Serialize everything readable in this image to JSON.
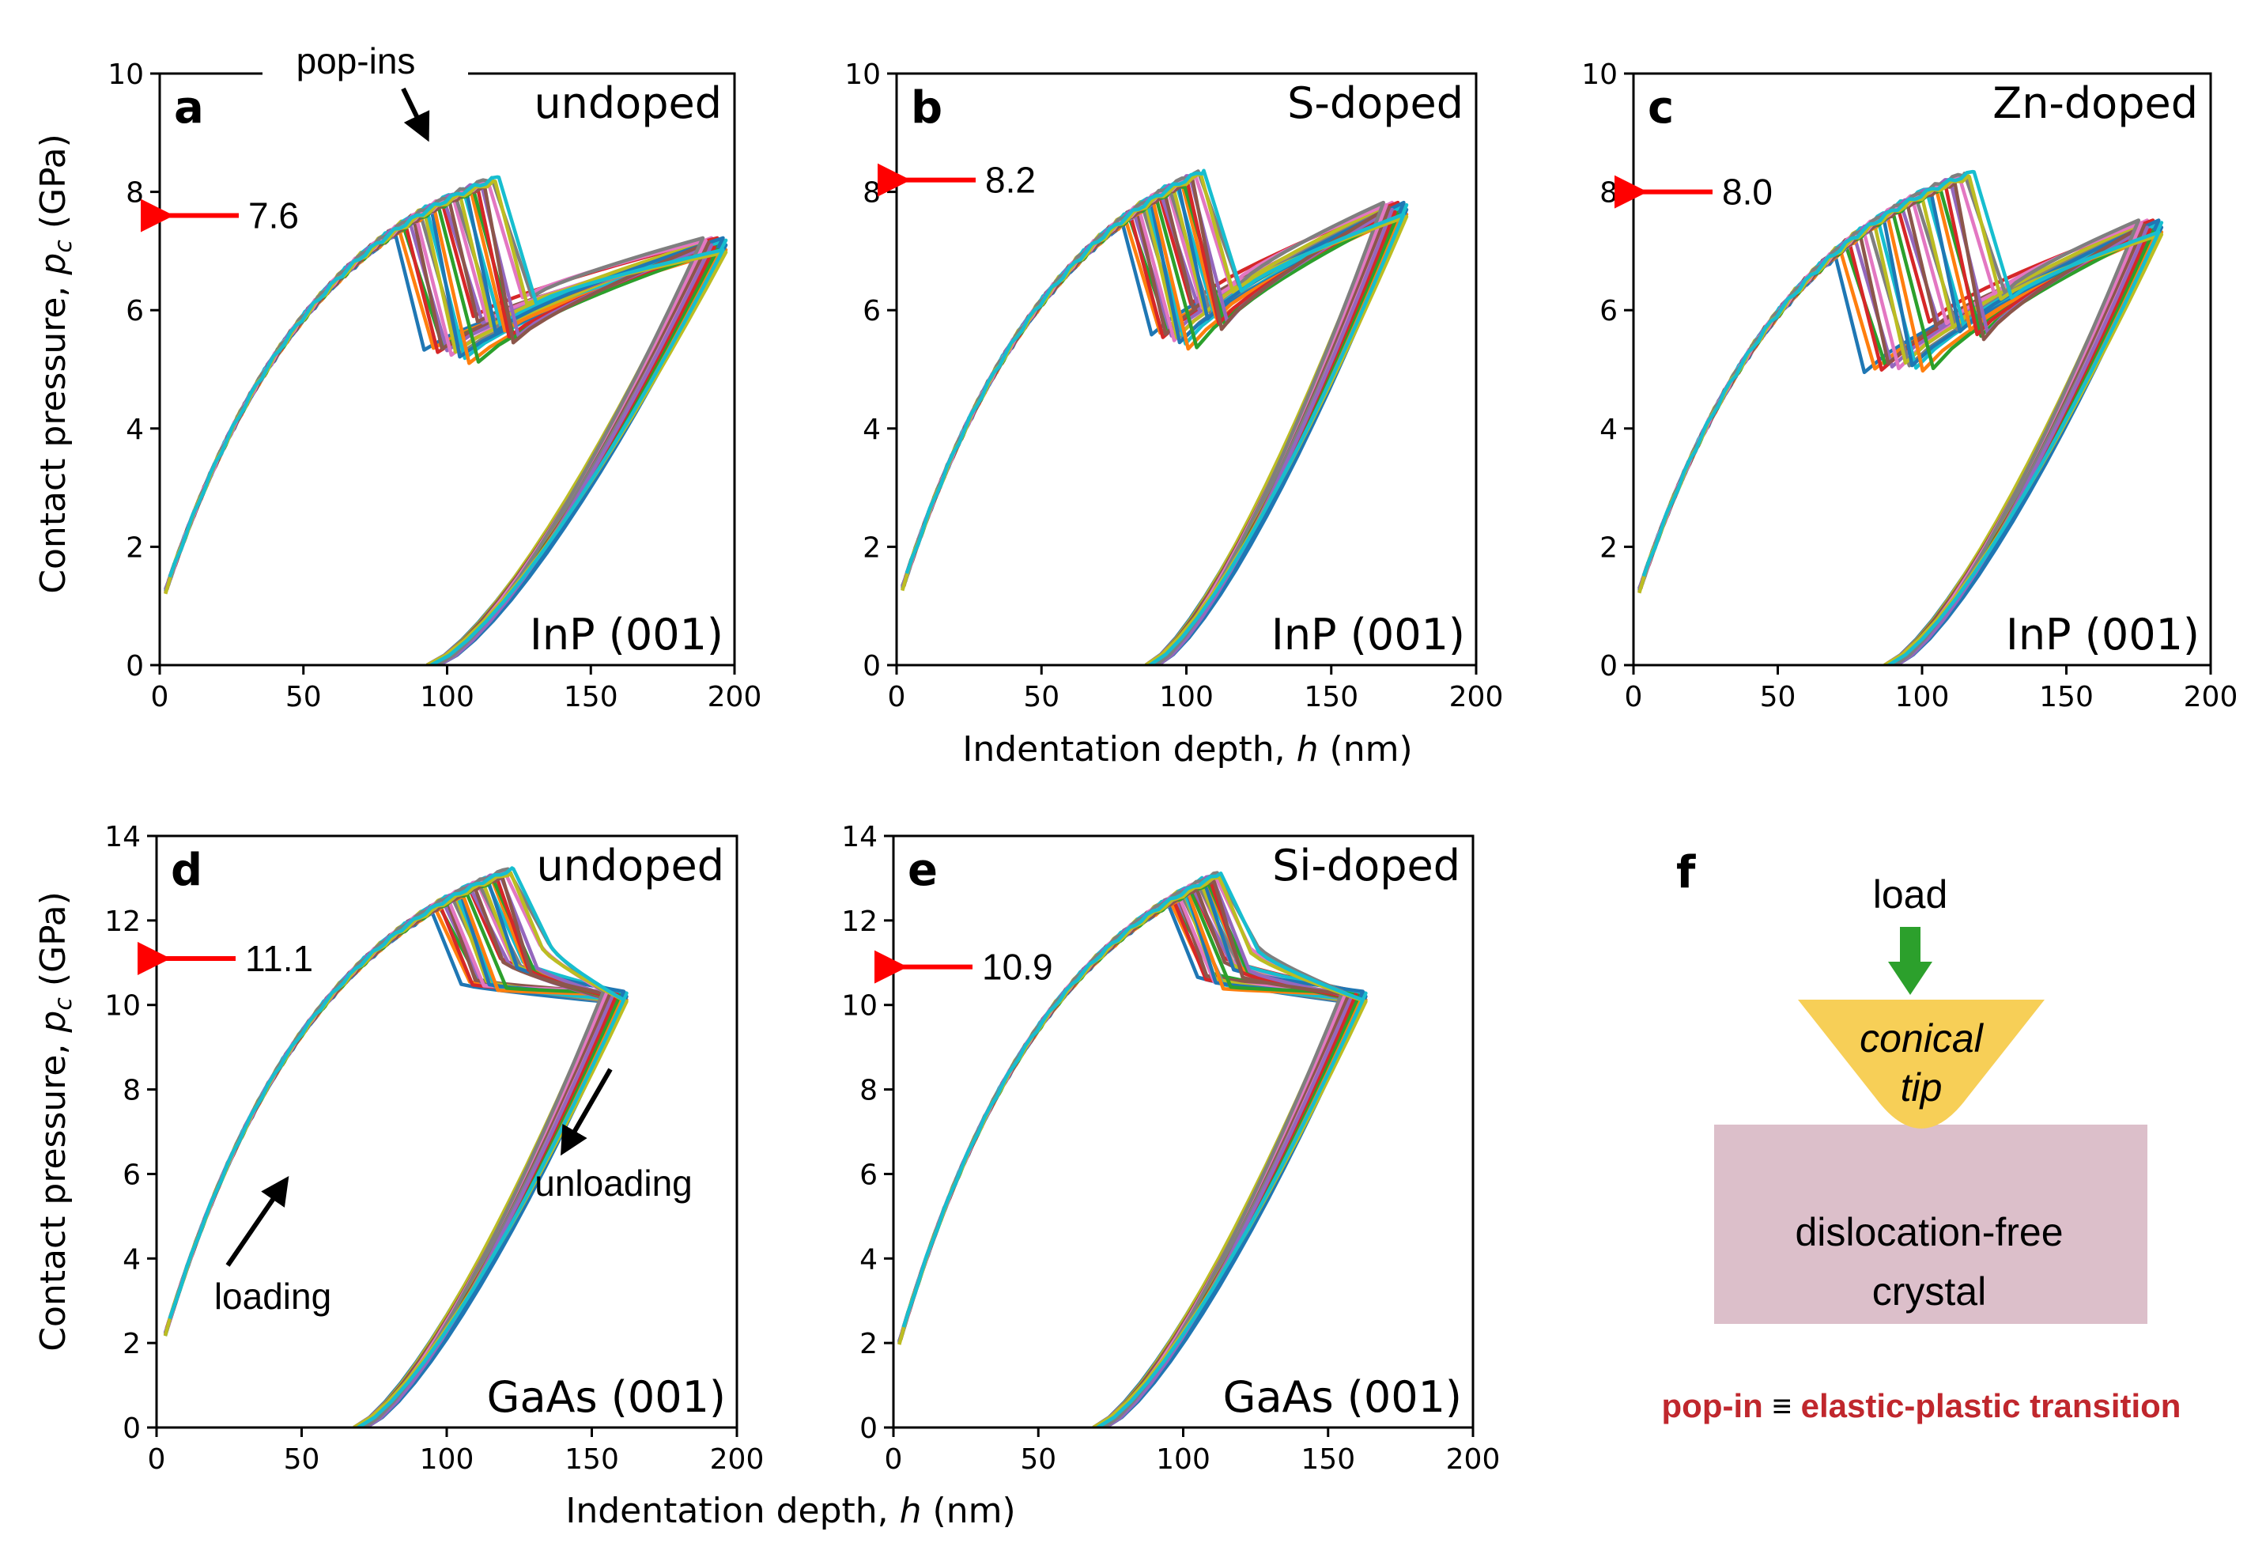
{
  "colors": {
    "marker_arrow": "#ff0000",
    "load_arrow": "#2ca02c",
    "tip_fill": "#f7cf57",
    "crystal_fill": "#dcbfca",
    "crystal_text": "#2b4a6a",
    "transition_text": "#c0272d",
    "series_palette": [
      "#1f77b4",
      "#ff7f0e",
      "#2ca02c",
      "#d62728",
      "#9467bd",
      "#8c564b",
      "#e377c2",
      "#7f7f7f",
      "#bcbd22",
      "#17becf"
    ]
  },
  "ylabel_prefix": "Contact pressure, ",
  "ylabel_symbol": "p",
  "ylabel_sub": "c",
  "ylabel_unit": " (GPa)",
  "xlabel_prefix": "Indentation depth, ",
  "xlabel_symbol": "h",
  "xlabel_unit": " (nm)",
  "chart_data": [
    {
      "panel": "a",
      "type": "line",
      "doping": "undoped",
      "material": "InP (001)",
      "xlim": [
        0,
        200
      ],
      "ylim": [
        0,
        10
      ],
      "xticks": [
        "0",
        "50",
        "100",
        "150",
        "200"
      ],
      "yticks": [
        "0",
        "2",
        "4",
        "6",
        "8",
        "10"
      ],
      "marker_value": 7.6,
      "marker_label": "7.6",
      "annotations": [
        "pop-ins"
      ],
      "n_curves": 30,
      "amplitude": 9.2,
      "start_x": 2,
      "popin_x": [
        82,
        118
      ],
      "popin_drop": 2.3,
      "max_depth": 193,
      "max_pressure": 7.1,
      "final_depth": 95
    },
    {
      "panel": "b",
      "type": "line",
      "doping": "S-doped",
      "material": "InP (001)",
      "xlim": [
        0,
        200
      ],
      "ylim": [
        0,
        10
      ],
      "xticks": [
        "0",
        "50",
        "100",
        "150",
        "200"
      ],
      "yticks": [
        "0",
        "2",
        "4",
        "6",
        "8",
        "10"
      ],
      "marker_value": 8.2,
      "marker_label": "8.2",
      "annotations": [],
      "n_curves": 30,
      "amplitude": 9.6,
      "start_x": 2,
      "popin_x": [
        78,
        106
      ],
      "popin_drop": 2.2,
      "max_depth": 172,
      "max_pressure": 7.7,
      "final_depth": 88
    },
    {
      "panel": "c",
      "type": "line",
      "doping": "Zn-doped",
      "material": "InP (001)",
      "xlim": [
        0,
        200
      ],
      "ylim": [
        0,
        10
      ],
      "xticks": [
        "0",
        "50",
        "100",
        "150",
        "200"
      ],
      "yticks": [
        "0",
        "2",
        "4",
        "6",
        "8",
        "10"
      ],
      "marker_value": 8.0,
      "marker_label": "8.0",
      "annotations": [],
      "n_curves": 30,
      "amplitude": 9.3,
      "start_x": 2,
      "popin_x": [
        70,
        118
      ],
      "popin_drop": 2.3,
      "max_depth": 179,
      "max_pressure": 7.4,
      "final_depth": 89
    },
    {
      "panel": "d",
      "type": "line",
      "doping": "undoped",
      "material": "GaAs (001)",
      "xlim": [
        0,
        200
      ],
      "ylim": [
        0,
        14
      ],
      "xticks": [
        "0",
        "50",
        "100",
        "150",
        "200"
      ],
      "yticks": [
        "0",
        "2",
        "4",
        "6",
        "8",
        "10",
        "12",
        "14"
      ],
      "marker_value": 11.1,
      "marker_label": "11.1",
      "annotations": [
        "loading",
        "unloading"
      ],
      "n_curves": 30,
      "amplitude": 14.6,
      "start_x": 3,
      "popin_x": [
        95,
        123
      ],
      "popin_drop": 2.0,
      "max_depth": 158,
      "max_pressure": 10.2,
      "final_depth": 70
    },
    {
      "panel": "e",
      "type": "line",
      "doping": "Si-doped",
      "material": "GaAs (001)",
      "xlim": [
        0,
        200
      ],
      "ylim": [
        0,
        14
      ],
      "xticks": [
        "0",
        "50",
        "100",
        "150",
        "200"
      ],
      "yticks": [
        "0",
        "2",
        "4",
        "6",
        "8",
        "10",
        "12",
        "14"
      ],
      "marker_value": 10.9,
      "marker_label": "10.9",
      "annotations": [],
      "n_curves": 30,
      "amplitude": 14.8,
      "start_x": 2,
      "popin_x": [
        95,
        113
      ],
      "popin_drop": 2.0,
      "max_depth": 159,
      "max_pressure": 10.2,
      "final_depth": 71
    }
  ],
  "schematic": {
    "letter": "f",
    "load_label": "load",
    "tip_line1": "conical",
    "tip_line2": "tip",
    "crystal_line1": "dislocation-free",
    "crystal_line2": "crystal",
    "caption_left": "pop-in",
    "caption_equiv": " ≡ ",
    "caption_right": "elastic-plastic transition"
  }
}
